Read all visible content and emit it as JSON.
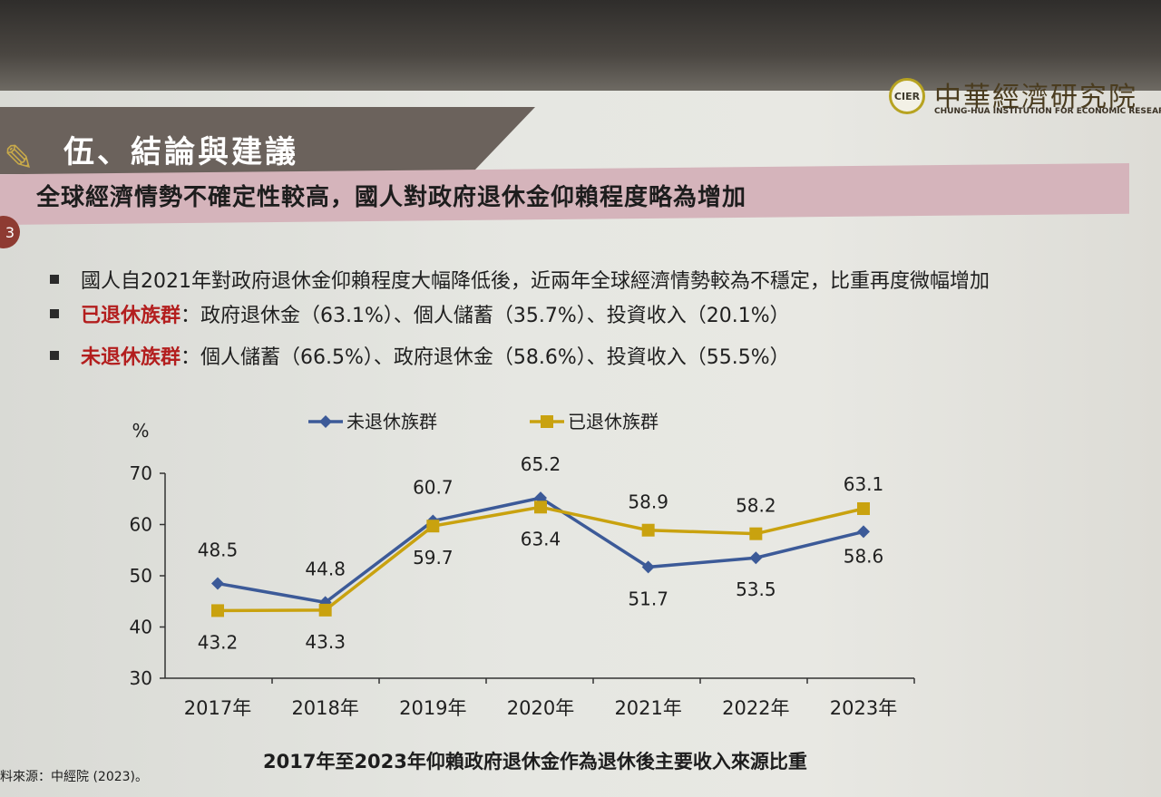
{
  "logo": {
    "mark": "CIER",
    "name_cn": "中華經濟研究院",
    "name_en": "CHUNG-HUA INSTITUTION FOR ECONOMIC RESEAR"
  },
  "section_title": "伍、結論與建議",
  "subhead": {
    "number": "3",
    "title": "全球經濟情勢不確定性較高，國人對政府退休金仰賴程度略為增加"
  },
  "bullets": [
    {
      "prefix": "",
      "text": "國人自2021年對政府退休金仰賴程度大幅降低後，近兩年全球經濟情勢較為不穩定，比重再度微幅增加"
    },
    {
      "prefix": "已退休族群",
      "text": "：政府退休金（63.1%）、個人儲蓄（35.7%）、投資收入（20.1%）"
    },
    {
      "prefix": "未退休族群",
      "text": "：個人儲蓄（66.5%）、政府退休金（58.6%）、投資收入（55.5%）"
    }
  ],
  "chart_data": {
    "type": "line",
    "title": "2017年至2023年仰賴政府退休金作為退休後主要收入來源比重",
    "xlabel": "",
    "ylabel": "%",
    "ylim": [
      30,
      70
    ],
    "yticks": [
      30,
      40,
      50,
      60,
      70
    ],
    "categories": [
      "2017年",
      "2018年",
      "2019年",
      "2020年",
      "2021年",
      "2022年",
      "2023年"
    ],
    "legend_position": "top",
    "grid": false,
    "series": [
      {
        "name": "未退休族群",
        "color": "#3c5a98",
        "marker": "diamond",
        "values": [
          48.5,
          44.8,
          60.7,
          65.2,
          51.7,
          53.5,
          58.6
        ]
      },
      {
        "name": "已退休族群",
        "color": "#c9a20f",
        "marker": "square",
        "values": [
          43.2,
          43.3,
          59.7,
          63.4,
          58.9,
          58.2,
          63.1
        ]
      }
    ]
  },
  "source_note": "料來源：中經院 (2023)。"
}
